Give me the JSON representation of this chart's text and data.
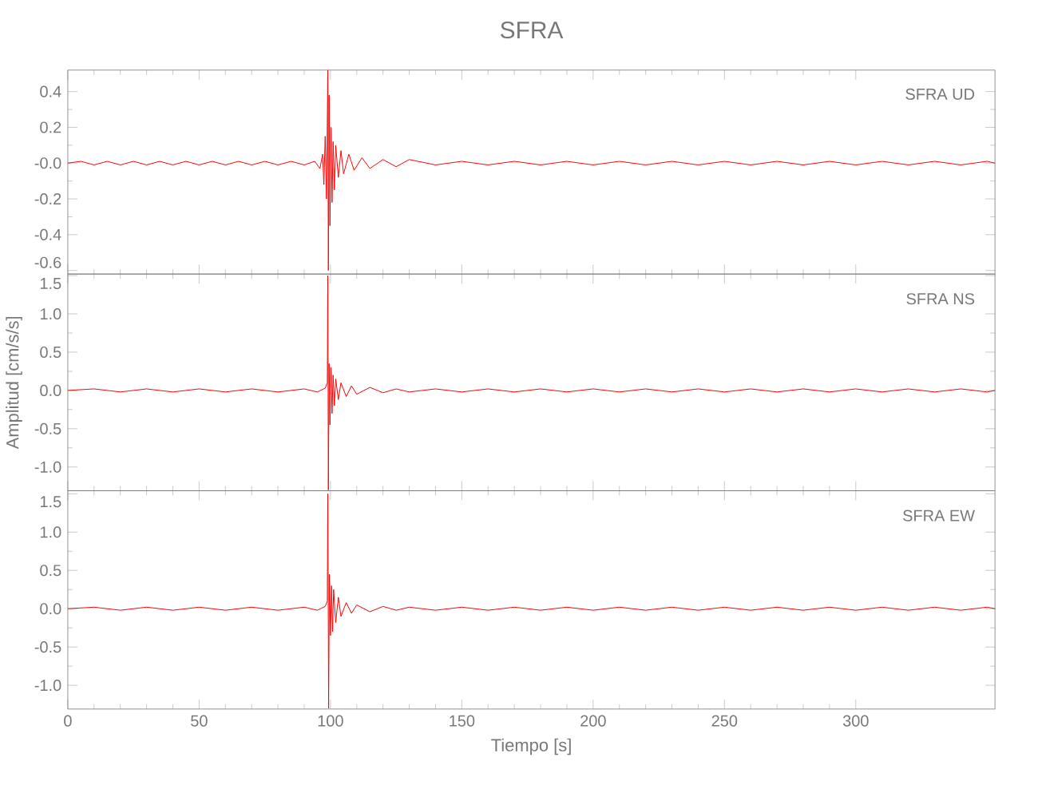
{
  "chart_data": [
    {
      "type": "line",
      "title": "SFRA",
      "annotations": [
        "SFRA   UD"
      ],
      "color": "#ff0000",
      "xlim": [
        0,
        353
      ],
      "ylim": [
        -0.62,
        0.52
      ],
      "xticks": [
        0,
        50,
        100,
        150,
        200,
        250,
        300
      ],
      "yticks": [
        {
          "value": -0.6,
          "label": "-0.6"
        },
        {
          "value": -0.4,
          "label": "-0.4"
        },
        {
          "value": -0.2,
          "label": "-0.2"
        },
        {
          "value": 0,
          "label": "-0.0"
        },
        {
          "value": 0.2,
          "label": "0.2"
        },
        {
          "value": 0.4,
          "label": "0.4"
        }
      ],
      "tick_labels": "y",
      "x": [
        0,
        5,
        10,
        15,
        20,
        25,
        30,
        35,
        40,
        45,
        50,
        55,
        60,
        65,
        70,
        75,
        80,
        85,
        90,
        94,
        96,
        97,
        97.5,
        98,
        98.5,
        99,
        99.2,
        99.5,
        99.8,
        100.2,
        100.6,
        101,
        101.5,
        102,
        103,
        104,
        105,
        107,
        109,
        112,
        115,
        120,
        125,
        130,
        140,
        150,
        160,
        170,
        180,
        190,
        200,
        210,
        220,
        230,
        240,
        250,
        260,
        270,
        280,
        290,
        300,
        310,
        320,
        330,
        340,
        350,
        353
      ],
      "values": [
        0,
        0.01,
        -0.01,
        0.01,
        -0.01,
        0.01,
        -0.01,
        0.01,
        -0.01,
        0.01,
        -0.01,
        0.01,
        -0.01,
        0.01,
        -0.01,
        0.01,
        -0.01,
        0.01,
        -0.01,
        0.01,
        -0.03,
        0.05,
        -0.12,
        0.15,
        -0.2,
        0.52,
        -0.6,
        0.38,
        -0.35,
        0.2,
        -0.22,
        0.12,
        -0.15,
        0.1,
        -0.08,
        0.07,
        -0.06,
        0.05,
        -0.04,
        0.03,
        -0.03,
        0.02,
        -0.02,
        0.02,
        -0.01,
        0.01,
        -0.01,
        0.01,
        -0.01,
        0.01,
        -0.01,
        0.01,
        -0.01,
        0.01,
        -0.01,
        0.01,
        -0.01,
        0.01,
        -0.01,
        0.01,
        -0.01,
        0.01,
        -0.01,
        0.01,
        -0.01,
        0.01,
        0
      ]
    },
    {
      "type": "line",
      "ylabel": "Amplitud [cm/s/s]",
      "annotations": [
        "SFRA   NS"
      ],
      "color": "#ff0000",
      "xlim": [
        0,
        353
      ],
      "ylim": [
        -1.31,
        1.52
      ],
      "xticks": [
        0,
        50,
        100,
        150,
        200,
        250,
        300
      ],
      "yticks": [
        {
          "value": -1,
          "label": "-1.0"
        },
        -0.5,
        {
          "value": 0,
          "label": "0.0"
        },
        0.5,
        {
          "value": 1,
          "label": "1.0"
        },
        1.5
      ],
      "tick_labels": "y",
      "x": [
        0,
        10,
        20,
        30,
        40,
        50,
        60,
        70,
        80,
        90,
        95,
        98,
        98.8,
        99,
        99.2,
        99.5,
        99.8,
        100.2,
        100.6,
        101,
        101.5,
        102,
        103,
        104,
        106,
        108,
        110,
        115,
        120,
        125,
        130,
        140,
        150,
        160,
        170,
        180,
        190,
        200,
        210,
        220,
        230,
        240,
        250,
        260,
        270,
        280,
        290,
        300,
        310,
        320,
        330,
        340,
        350,
        353
      ],
      "values": [
        0,
        0.02,
        -0.02,
        0.02,
        -0.02,
        0.02,
        -0.02,
        0.02,
        -0.02,
        0.02,
        -0.02,
        0.03,
        0.1,
        1.5,
        -1.3,
        0.35,
        -0.45,
        0.3,
        -0.3,
        0.2,
        -0.2,
        0.15,
        -0.12,
        0.1,
        -0.08,
        0.06,
        -0.05,
        0.04,
        -0.03,
        0.02,
        -0.02,
        0.02,
        -0.02,
        0.02,
        -0.02,
        0.02,
        -0.02,
        0.02,
        -0.02,
        0.02,
        -0.02,
        0.02,
        -0.02,
        0.02,
        -0.02,
        0.02,
        -0.02,
        0.02,
        -0.02,
        0.02,
        -0.02,
        0.02,
        -0.02,
        0
      ]
    },
    {
      "type": "line",
      "xlabel": "Tiempo [s]",
      "annotations": [
        "SFRA   EW"
      ],
      "color": "#ff0000",
      "xlim": [
        0,
        353
      ],
      "ylim": [
        -1.31,
        1.54
      ],
      "xticks": [
        0,
        50,
        100,
        150,
        200,
        250,
        300
      ],
      "yticks": [
        {
          "value": -1,
          "label": "-1.0"
        },
        -0.5,
        {
          "value": 0,
          "label": "0.0"
        },
        0.5,
        {
          "value": 1,
          "label": "1.0"
        },
        1.5
      ],
      "x": [
        0,
        10,
        20,
        30,
        40,
        50,
        60,
        70,
        80,
        90,
        95,
        98,
        98.8,
        99,
        99.3,
        99.6,
        100,
        100.4,
        100.8,
        101.2,
        102,
        103,
        104,
        106,
        108,
        110,
        115,
        120,
        125,
        130,
        140,
        150,
        160,
        170,
        180,
        190,
        200,
        210,
        220,
        230,
        240,
        250,
        260,
        270,
        280,
        290,
        300,
        310,
        320,
        330,
        340,
        350,
        353
      ],
      "values": [
        0,
        0.02,
        -0.02,
        0.02,
        -0.02,
        0.02,
        -0.02,
        0.02,
        -0.02,
        0.02,
        -0.02,
        0.03,
        0.1,
        1.5,
        -1.3,
        0.45,
        -0.35,
        0.3,
        -0.3,
        0.25,
        -0.18,
        0.15,
        -0.1,
        0.08,
        -0.06,
        0.05,
        -0.04,
        0.03,
        -0.02,
        0.02,
        -0.02,
        0.02,
        -0.02,
        0.02,
        -0.02,
        0.02,
        -0.02,
        0.02,
        -0.02,
        0.02,
        -0.02,
        0.02,
        -0.02,
        0.02,
        -0.02,
        0.02,
        -0.02,
        0.02,
        -0.02,
        0.02,
        -0.02,
        0.02,
        0
      ]
    }
  ]
}
